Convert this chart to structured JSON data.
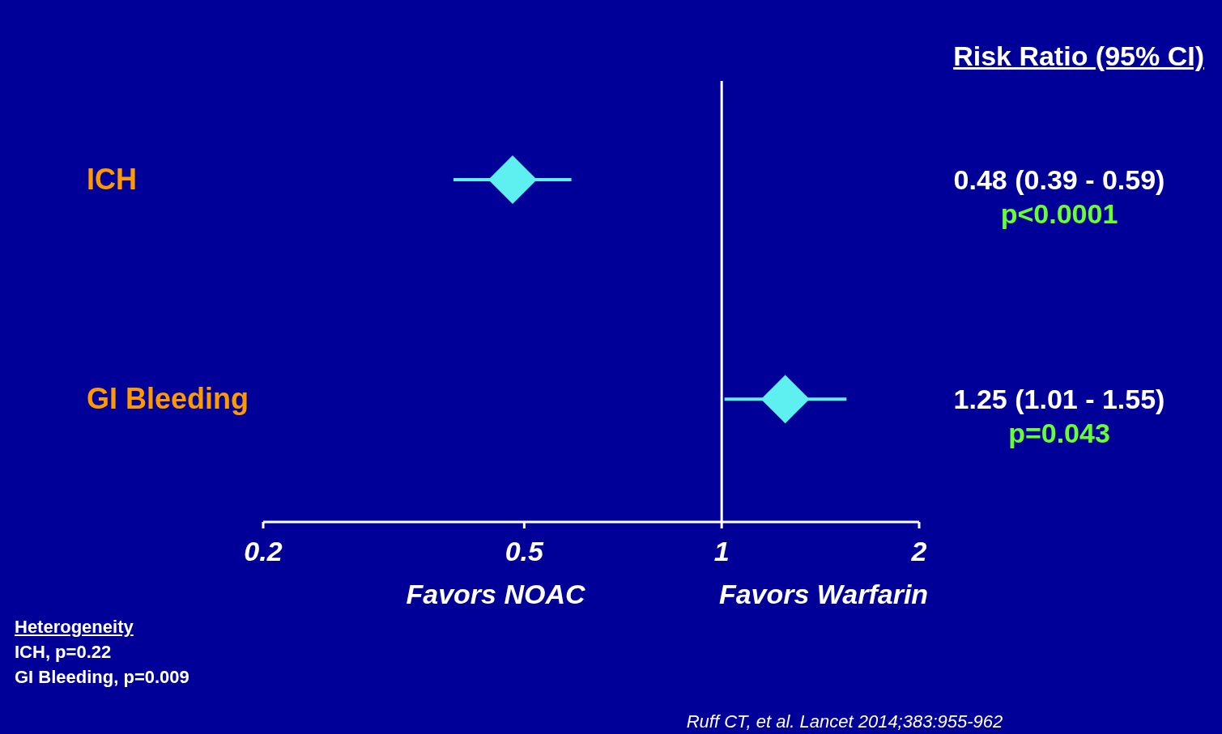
{
  "chart_data": {
    "type": "scatter",
    "orientation": "horizontal",
    "categories": [
      "ICH",
      "GI Bleeding"
    ],
    "values": [
      0.48,
      1.25
    ],
    "errors": [
      [
        0.39,
        0.59
      ],
      [
        1.01,
        1.55
      ]
    ],
    "value_labels": [
      "0.48 (0.39 - 0.59)",
      "1.25 (1.01 - 1.55)"
    ],
    "color": "#5ef0f0",
    "marker": "diamond",
    "log": "x",
    "xlim": [
      0.2,
      2
    ],
    "xticks": [
      0.2,
      0.5,
      1,
      2
    ],
    "grid": false,
    "ref_lines": [
      {
        "axis": "x",
        "value": 1,
        "color": "#ffffff"
      }
    ],
    "annotations": [
      "Risk Ratio (95% CI)",
      "Favors NOAC",
      "Favors Warfarin",
      "Heterogeneity",
      "ICH, p=0.22",
      "GI Bleeding, p=0.009",
      "Ruff CT, et al. Lancet 2014;383:955-962",
      "p<0.0001",
      "p=0.043"
    ]
  }
}
